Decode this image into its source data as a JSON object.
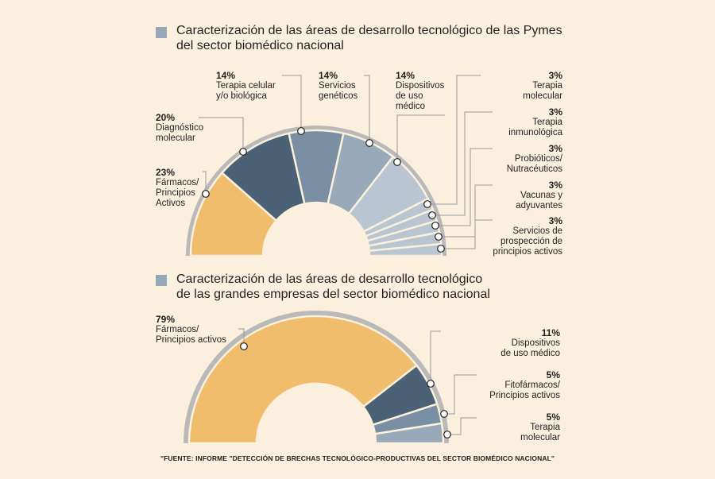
{
  "colors": {
    "background": "#faf0dd",
    "legend_square": "#95a6b6",
    "outer_ring": "#b9b9b9",
    "leader_line": "#9a9a9a",
    "farmacos": "#f0bd6c",
    "diagnostico": "#4b6276",
    "terapia_celular": "#7a8fa3",
    "servicios_geneticos": "#98a9ba",
    "dispositivos": "#b9c5d1",
    "small_slices": "#b9c5d1",
    "dispositivos_grandes": "#4b6276",
    "fitofarmacos": "#7a8fa3",
    "terapia_molecular_grandes": "#98a9ba"
  },
  "chart_data": [
    {
      "type": "pie",
      "variant": "half-donut",
      "title": "Caracterización de las áreas de desarrollo tecnológico de las Pymes del sector biomédico nacional",
      "title_lines": [
        "Caracterización de las áreas de desarrollo tecnológico de las Pymes",
        "del sector biomédico nacional"
      ],
      "slices": [
        {
          "pct": "23%",
          "label": "Fármacos/\nPrincipios\nActivos",
          "value": 23,
          "color_key": "farmacos"
        },
        {
          "pct": "20%",
          "label": "Diagnóstico\nmolecular",
          "value": 20,
          "color_key": "diagnostico"
        },
        {
          "pct": "14%",
          "label": "Terapia celular\ny/o biológica",
          "value": 14,
          "color_key": "terapia_celular"
        },
        {
          "pct": "14%",
          "label": "Servicios\ngenéticos",
          "value": 14,
          "color_key": "servicios_geneticos"
        },
        {
          "pct": "14%",
          "label": "Dispositivos\nde uso\nmédico",
          "value": 14,
          "color_key": "dispositivos"
        },
        {
          "pct": "3%",
          "label": "Terapia\nmolecular",
          "value": 3,
          "color_key": "small_slices"
        },
        {
          "pct": "3%",
          "label": "Terapia\ninmunológica",
          "value": 3,
          "color_key": "small_slices"
        },
        {
          "pct": "3%",
          "label": "Probióticos/\nNutracéuticos",
          "value": 3,
          "color_key": "small_slices"
        },
        {
          "pct": "3%",
          "label": "Vacunas y\nadyuvantes",
          "value": 3,
          "color_key": "small_slices"
        },
        {
          "pct": "3%",
          "label": "Servicios de\nprospección de\nprincipios activos",
          "value": 3,
          "color_key": "small_slices"
        }
      ]
    },
    {
      "type": "pie",
      "variant": "half-donut",
      "title": "Caracterización de las áreas de desarrollo tecnológico de las grandes empresas del sector biomédico nacional",
      "title_lines": [
        "Caracterización de las áreas de desarrollo tecnológico",
        "de las grandes empresas del sector biomédico nacional"
      ],
      "slices": [
        {
          "pct": "79%",
          "label": "Fármacos/\nPrincipios activos",
          "value": 79,
          "color_key": "farmacos"
        },
        {
          "pct": "11%",
          "label": "Dispositivos\nde uso médico",
          "value": 11,
          "color_key": "dispositivos_grandes"
        },
        {
          "pct": "5%",
          "label": "Fitofármacos/\nPrincipios activos",
          "value": 5,
          "color_key": "fitofarmacos"
        },
        {
          "pct": "5%",
          "label": "Terapia\nmolecular",
          "value": 5,
          "color_key": "terapia_molecular_grandes"
        }
      ]
    }
  ],
  "source_note": "\"FUENTE: INFORME \"DETECCIÓN DE BRECHAS TECNOLÓGICO-PRODUCTIVAS DEL SECTOR BIOMÉDICO NACIONAL\""
}
